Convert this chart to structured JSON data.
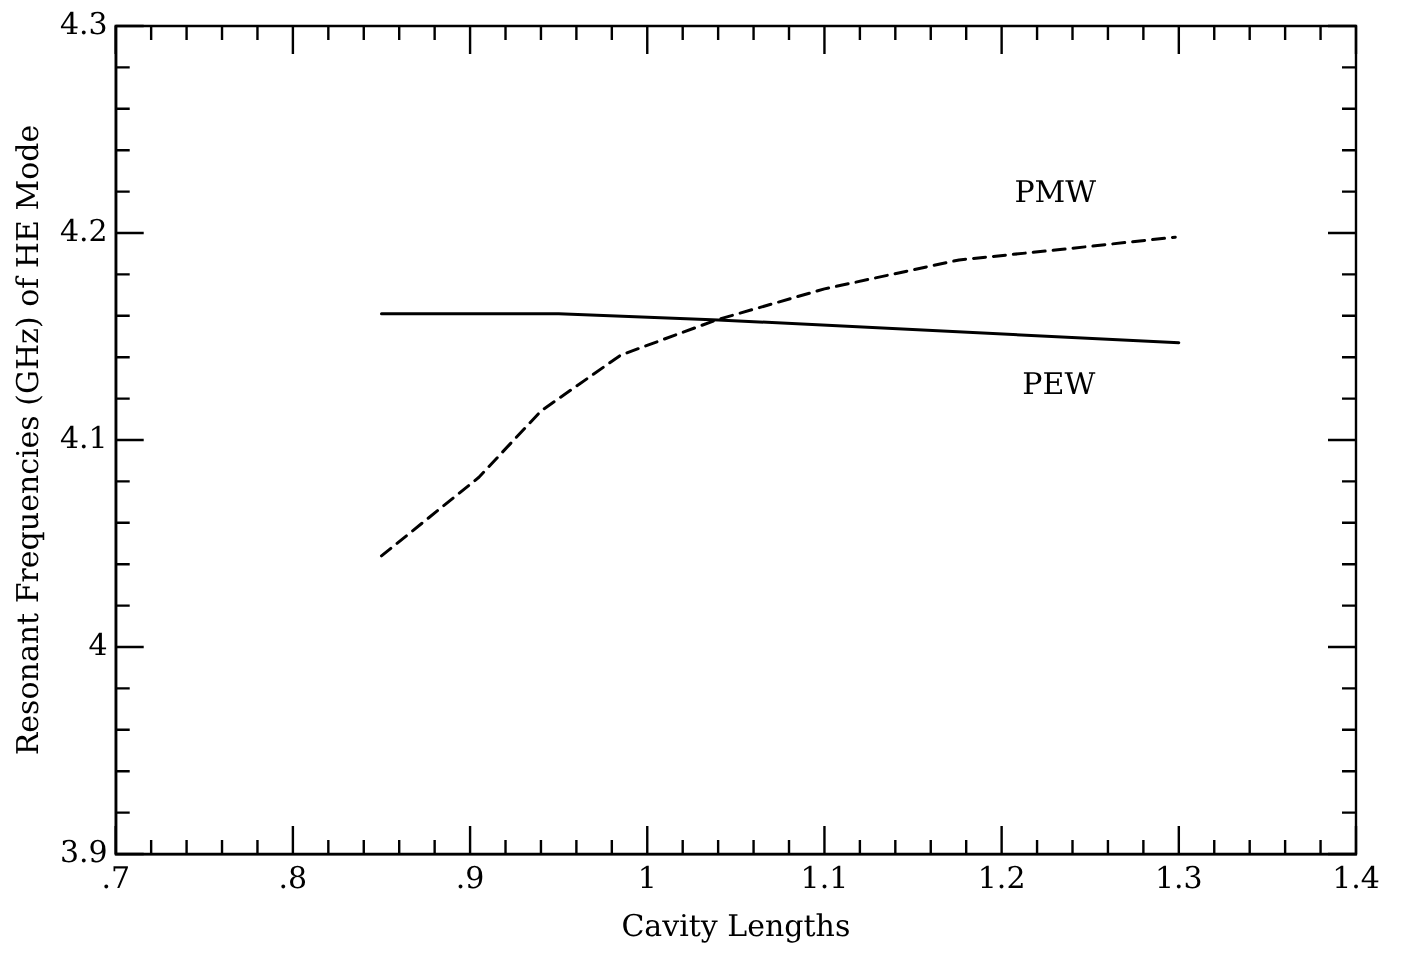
{
  "chart_data": {
    "type": "line",
    "xlabel": "Cavity Lengths",
    "ylabel": "Resonant Frequencies (GHz) of HE Mode",
    "xlim": [
      0.7,
      1.4
    ],
    "ylim": [
      3.9,
      4.3
    ],
    "xticks": [
      {
        "value": 0.7,
        "label": ".7"
      },
      {
        "value": 0.72,
        "label": null
      },
      {
        "value": 0.74,
        "label": null
      },
      {
        "value": 0.76,
        "label": null
      },
      {
        "value": 0.78,
        "label": null
      },
      {
        "value": 0.8,
        "label": ".8"
      },
      {
        "value": 0.82,
        "label": null
      },
      {
        "value": 0.84,
        "label": null
      },
      {
        "value": 0.86,
        "label": null
      },
      {
        "value": 0.88,
        "label": null
      },
      {
        "value": 0.9,
        "label": ".9"
      },
      {
        "value": 0.92,
        "label": null
      },
      {
        "value": 0.94,
        "label": null
      },
      {
        "value": 0.96,
        "label": null
      },
      {
        "value": 0.98,
        "label": null
      },
      1,
      {
        "value": 1.02,
        "label": null
      },
      {
        "value": 1.04,
        "label": null
      },
      {
        "value": 1.06,
        "label": null
      },
      {
        "value": 1.08,
        "label": null
      },
      1.1,
      {
        "value": 1.12,
        "label": null
      },
      {
        "value": 1.14,
        "label": null
      },
      {
        "value": 1.16,
        "label": null
      },
      {
        "value": 1.18,
        "label": null
      },
      1.2,
      {
        "value": 1.22,
        "label": null
      },
      {
        "value": 1.24,
        "label": null
      },
      {
        "value": 1.26,
        "label": null
      },
      {
        "value": 1.28,
        "label": null
      },
      1.3,
      {
        "value": 1.32,
        "label": null
      },
      {
        "value": 1.34,
        "label": null
      },
      {
        "value": 1.36,
        "label": null
      },
      {
        "value": 1.38,
        "label": null
      },
      1.4
    ],
    "yticks": [
      3.9,
      {
        "value": 3.92,
        "label": null
      },
      {
        "value": 3.94,
        "label": null
      },
      {
        "value": 3.96,
        "label": null
      },
      {
        "value": 3.98,
        "label": null
      },
      4,
      {
        "value": 4.02,
        "label": null
      },
      {
        "value": 4.04,
        "label": null
      },
      {
        "value": 4.06,
        "label": null
      },
      {
        "value": 4.08,
        "label": null
      },
      4.1,
      {
        "value": 4.12,
        "label": null
      },
      {
        "value": 4.14,
        "label": null
      },
      {
        "value": 4.16,
        "label": null
      },
      {
        "value": 4.18,
        "label": null
      },
      4.2,
      {
        "value": 4.22,
        "label": null
      },
      {
        "value": 4.24,
        "label": null
      },
      {
        "value": 4.26,
        "label": null
      },
      {
        "value": 4.28,
        "label": null
      },
      4.3
    ],
    "grid": false,
    "legend": false,
    "marker": "none",
    "series": [
      {
        "name": "PEW",
        "color": "#000000",
        "line_style": "solid",
        "x": [
          0.85,
          0.95,
          1.04,
          1.3
        ],
        "values": [
          4.161,
          4.161,
          4.158,
          4.147
        ]
      },
      {
        "name": "PMW",
        "color": "#000000",
        "line_style": "dashed",
        "x": [
          0.85,
          0.905,
          0.94,
          0.985,
          1.039,
          1.1,
          1.176,
          1.233,
          1.298
        ],
        "values": [
          4.044,
          4.082,
          4.114,
          4.141,
          4.158,
          4.173,
          4.187,
          4.192,
          4.198
        ]
      }
    ]
  }
}
